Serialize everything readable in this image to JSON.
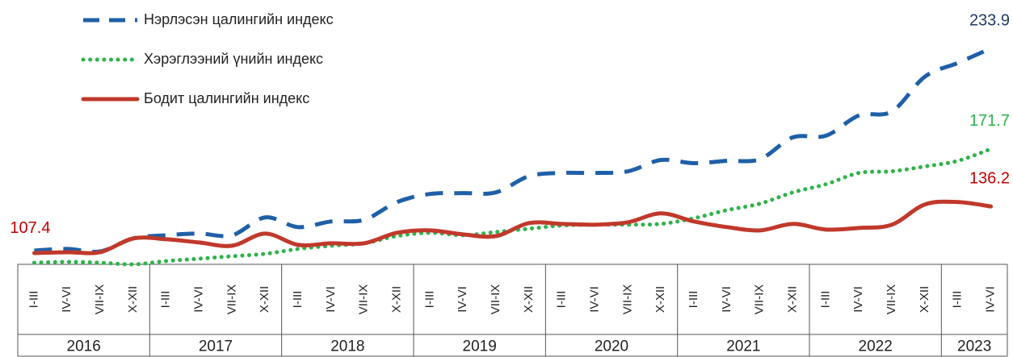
{
  "chart_data": {
    "type": "line",
    "groups": [
      {
        "label": "2016",
        "categories": [
          "I-III",
          "IV-VI",
          "VII-IX",
          "X-XII"
        ]
      },
      {
        "label": "2017",
        "categories": [
          "I-III",
          "IV-VI",
          "VII-IX",
          "X-XII"
        ]
      },
      {
        "label": "2018",
        "categories": [
          "I-III",
          "IV-VI",
          "VII-IX",
          "X-XII"
        ]
      },
      {
        "label": "2019",
        "categories": [
          "I-III",
          "IV-VI",
          "VII-IX",
          "X-XII"
        ]
      },
      {
        "label": "2020",
        "categories": [
          "I-III",
          "IV-VI",
          "VII-IX",
          "X-XII"
        ]
      },
      {
        "label": "2021",
        "categories": [
          "I-III",
          "IV-VI",
          "VII-IX",
          "X-XII"
        ]
      },
      {
        "label": "2022",
        "categories": [
          "I-III",
          "IV-VI",
          "VII-IX",
          "X-XII"
        ]
      },
      {
        "label": "2023",
        "categories": [
          "I-III",
          "IV-VI"
        ]
      }
    ],
    "series": [
      {
        "name": "Нэрлэсэн цалингийн индекс",
        "color": "#1f5fa8",
        "style": "dashed",
        "label_color": "#1f3a68",
        "values": [
          108.9,
          109.9,
          108.4,
          116.4,
          118.4,
          119.4,
          118.4,
          129.4,
          123.4,
          126.9,
          127.9,
          138.9,
          143.9,
          144.4,
          144.9,
          154.9,
          156.9,
          156.9,
          157.9,
          164.9,
          162.9,
          164.4,
          165.4,
          178.9,
          179.9,
          192.4,
          194.9,
          216.4,
          224.9,
          233.9
        ]
      },
      {
        "name": "Хэрэглээний үнийн индекс",
        "color": "#2db34a",
        "style": "dotted",
        "label_color": "#2db34a",
        "values": [
          101.4,
          101.9,
          101.4,
          100.4,
          102.4,
          103.9,
          105.4,
          106.9,
          109.9,
          111.9,
          113.4,
          117.9,
          119.9,
          118.4,
          120.4,
          122.4,
          124.4,
          124.9,
          124.9,
          125.4,
          128.9,
          133.9,
          137.9,
          144.9,
          149.9,
          156.9,
          157.9,
          160.9,
          164.4,
          171.7
        ]
      },
      {
        "name": "Бодит цалингийн индекс",
        "color": "#c0392b",
        "style": "solid",
        "label_color": "#c00000",
        "values": [
          107.4,
          107.9,
          107.9,
          116.4,
          115.9,
          113.9,
          111.9,
          119.4,
          112.4,
          113.4,
          113.4,
          119.9,
          121.4,
          118.9,
          117.9,
          125.9,
          125.4,
          124.9,
          126.4,
          131.9,
          126.9,
          123.4,
          121.4,
          125.4,
          121.9,
          122.9,
          124.9,
          137.4,
          138.9,
          136.2
        ]
      }
    ],
    "labeled_points": [
      [
        0,
        29
      ],
      [
        1,
        29
      ],
      [
        2,
        0
      ],
      [
        2,
        29
      ]
    ]
  }
}
